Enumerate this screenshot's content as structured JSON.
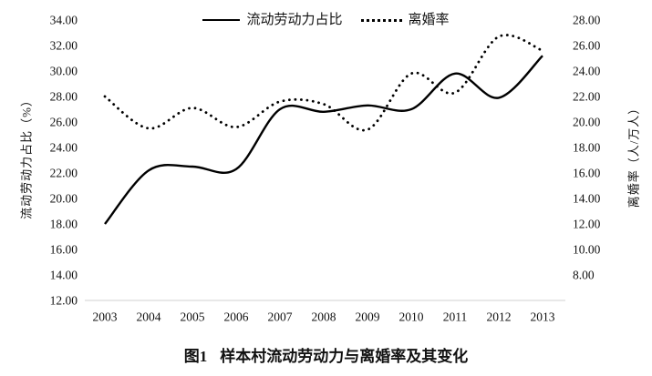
{
  "figure": {
    "caption_prefix": "图1",
    "caption_text": "样本村流动劳动力与离婚率及其变化"
  },
  "chart_data": {
    "type": "line",
    "title": "图1 样本村流动劳动力与离婚率及其变化",
    "x": [
      2003,
      2004,
      2005,
      2006,
      2007,
      2008,
      2009,
      2010,
      2011,
      2012,
      2013
    ],
    "x_tick_labels": [
      "2003",
      "2004",
      "2005",
      "2006",
      "2007",
      "2008",
      "2009",
      "2010",
      "2011",
      "2012",
      "2013"
    ],
    "series": [
      {
        "name": "流动劳动力占比",
        "axis": "left",
        "style": "solid",
        "color": "#000000",
        "values": [
          18.0,
          22.2,
          22.5,
          22.3,
          27.0,
          26.8,
          27.3,
          27.0,
          29.8,
          27.9,
          31.2
        ]
      },
      {
        "name": "离婚率",
        "axis": "right",
        "style": "dotted",
        "color": "#000000",
        "values": [
          22.0,
          19.5,
          21.1,
          19.6,
          21.6,
          21.4,
          19.4,
          23.8,
          22.3,
          26.7,
          25.6
        ]
      }
    ],
    "left_axis": {
      "label": "流动劳动力占比（%）",
      "max": 34,
      "min": 12,
      "step": 2,
      "tick_labels": [
        "34.00",
        "32.00",
        "30.00",
        "28.00",
        "26.00",
        "24.00",
        "22.00",
        "20.00",
        "18.00",
        "16.00",
        "14.00",
        "12.00"
      ]
    },
    "right_axis": {
      "label": "离婚率（人/万人）",
      "max": 28,
      "min": 6,
      "step": 2,
      "tick_labels": [
        "28.00",
        "26.00",
        "24.00",
        "22.00",
        "20.00",
        "18.00",
        "16.00",
        "14.00",
        "12.00",
        "10.00",
        "8.00"
      ]
    },
    "legend_position": "top-center",
    "grid": false,
    "smoothed": true,
    "colors": {
      "line": "#000000",
      "axis_line": "#d9d9d9",
      "text": "#111111"
    }
  }
}
